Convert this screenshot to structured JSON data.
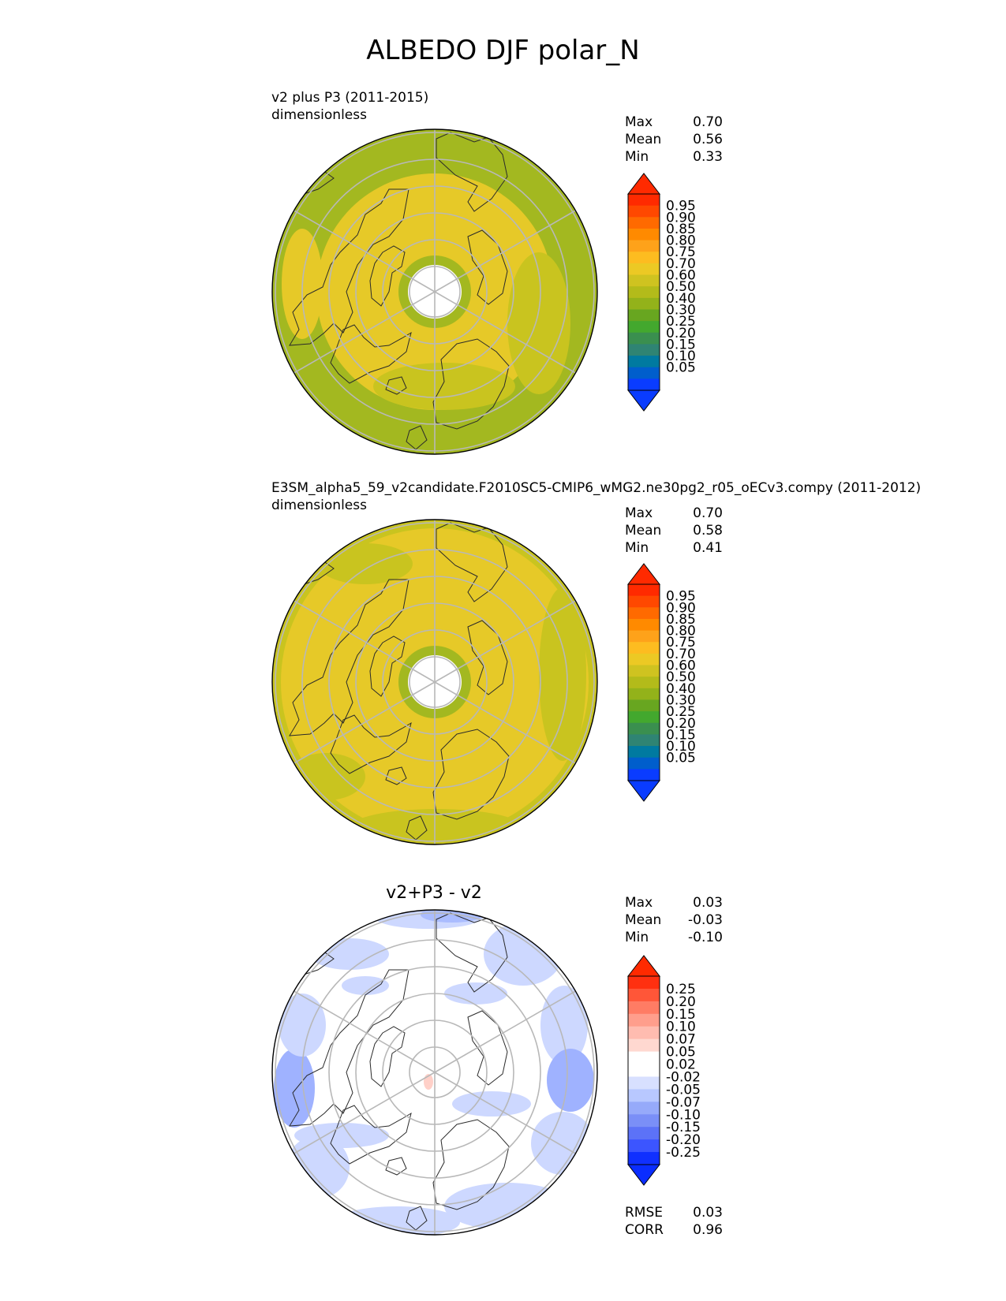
{
  "title": "ALBEDO DJF polar_N",
  "panels": [
    {
      "id": "test",
      "title_line1": "v2 plus P3 (2011-2015)",
      "title_line2": "dimensionless",
      "stats": [
        {
          "label": "Max",
          "value": "0.70"
        },
        {
          "label": "Mean",
          "value": "0.56"
        },
        {
          "label": "Min",
          "value": "0.33"
        }
      ],
      "map_style": "mixed"
    },
    {
      "id": "ref",
      "title_line1": "E3SM_alpha5_59_v2candidate.F2010SC5-CMIP6_wMG2.ne30pg2_r05_oECv3.compy (2011-2012)",
      "title_line2": "dimensionless",
      "stats": [
        {
          "label": "Max",
          "value": "0.70"
        },
        {
          "label": "Mean",
          "value": "0.58"
        },
        {
          "label": "Min",
          "value": "0.41"
        }
      ],
      "map_style": "yellow"
    },
    {
      "id": "diff",
      "center_title": "v2+P3 - v2",
      "stats": [
        {
          "label": "Max",
          "value": "0.03"
        },
        {
          "label": "Mean",
          "value": "-0.03"
        },
        {
          "label": "Min",
          "value": "-0.10"
        }
      ],
      "extra_stats": [
        {
          "label": "RMSE",
          "value": "0.03"
        },
        {
          "label": "CORR",
          "value": "0.96"
        }
      ],
      "map_style": "diff"
    }
  ],
  "colorbars": {
    "field": {
      "labels": [
        "0.95",
        "0.90",
        "0.85",
        "0.80",
        "0.75",
        "0.70",
        "0.60",
        "0.50",
        "0.40",
        "0.30",
        "0.25",
        "0.20",
        "0.15",
        "0.10",
        "0.05"
      ],
      "colors": [
        "#ff2a00",
        "#ff4800",
        "#ff6a00",
        "#ff8a00",
        "#fea21a",
        "#fdbc20",
        "#ecc924",
        "#cfc320",
        "#b3bb1a",
        "#93b21a",
        "#68a620",
        "#43a82e",
        "#3a8f4f",
        "#2f8473",
        "#007aa0",
        "#005ecc",
        "#0a3cff"
      ],
      "top_color": "#ff2a00",
      "bottom_color": "#0a3cff"
    },
    "diff": {
      "labels": [
        "0.25",
        "0.20",
        "0.15",
        "0.10",
        "0.07",
        "0.05",
        "0.02",
        "-0.02",
        "-0.05",
        "-0.07",
        "-0.10",
        "-0.15",
        "-0.20",
        "-0.25"
      ],
      "colors": [
        "#ff3010",
        "#ff5638",
        "#ff7c64",
        "#ff9e8c",
        "#ffbcb0",
        "#ffd8d0",
        "#ffffff",
        "#ffffff",
        "#d8e0ff",
        "#b8c8ff",
        "#96aafa",
        "#7a8ff7",
        "#5c72f7",
        "#3c55ff",
        "#1030ff"
      ],
      "top_color": "#ff2a00",
      "bottom_color": "#0a2dff"
    }
  }
}
